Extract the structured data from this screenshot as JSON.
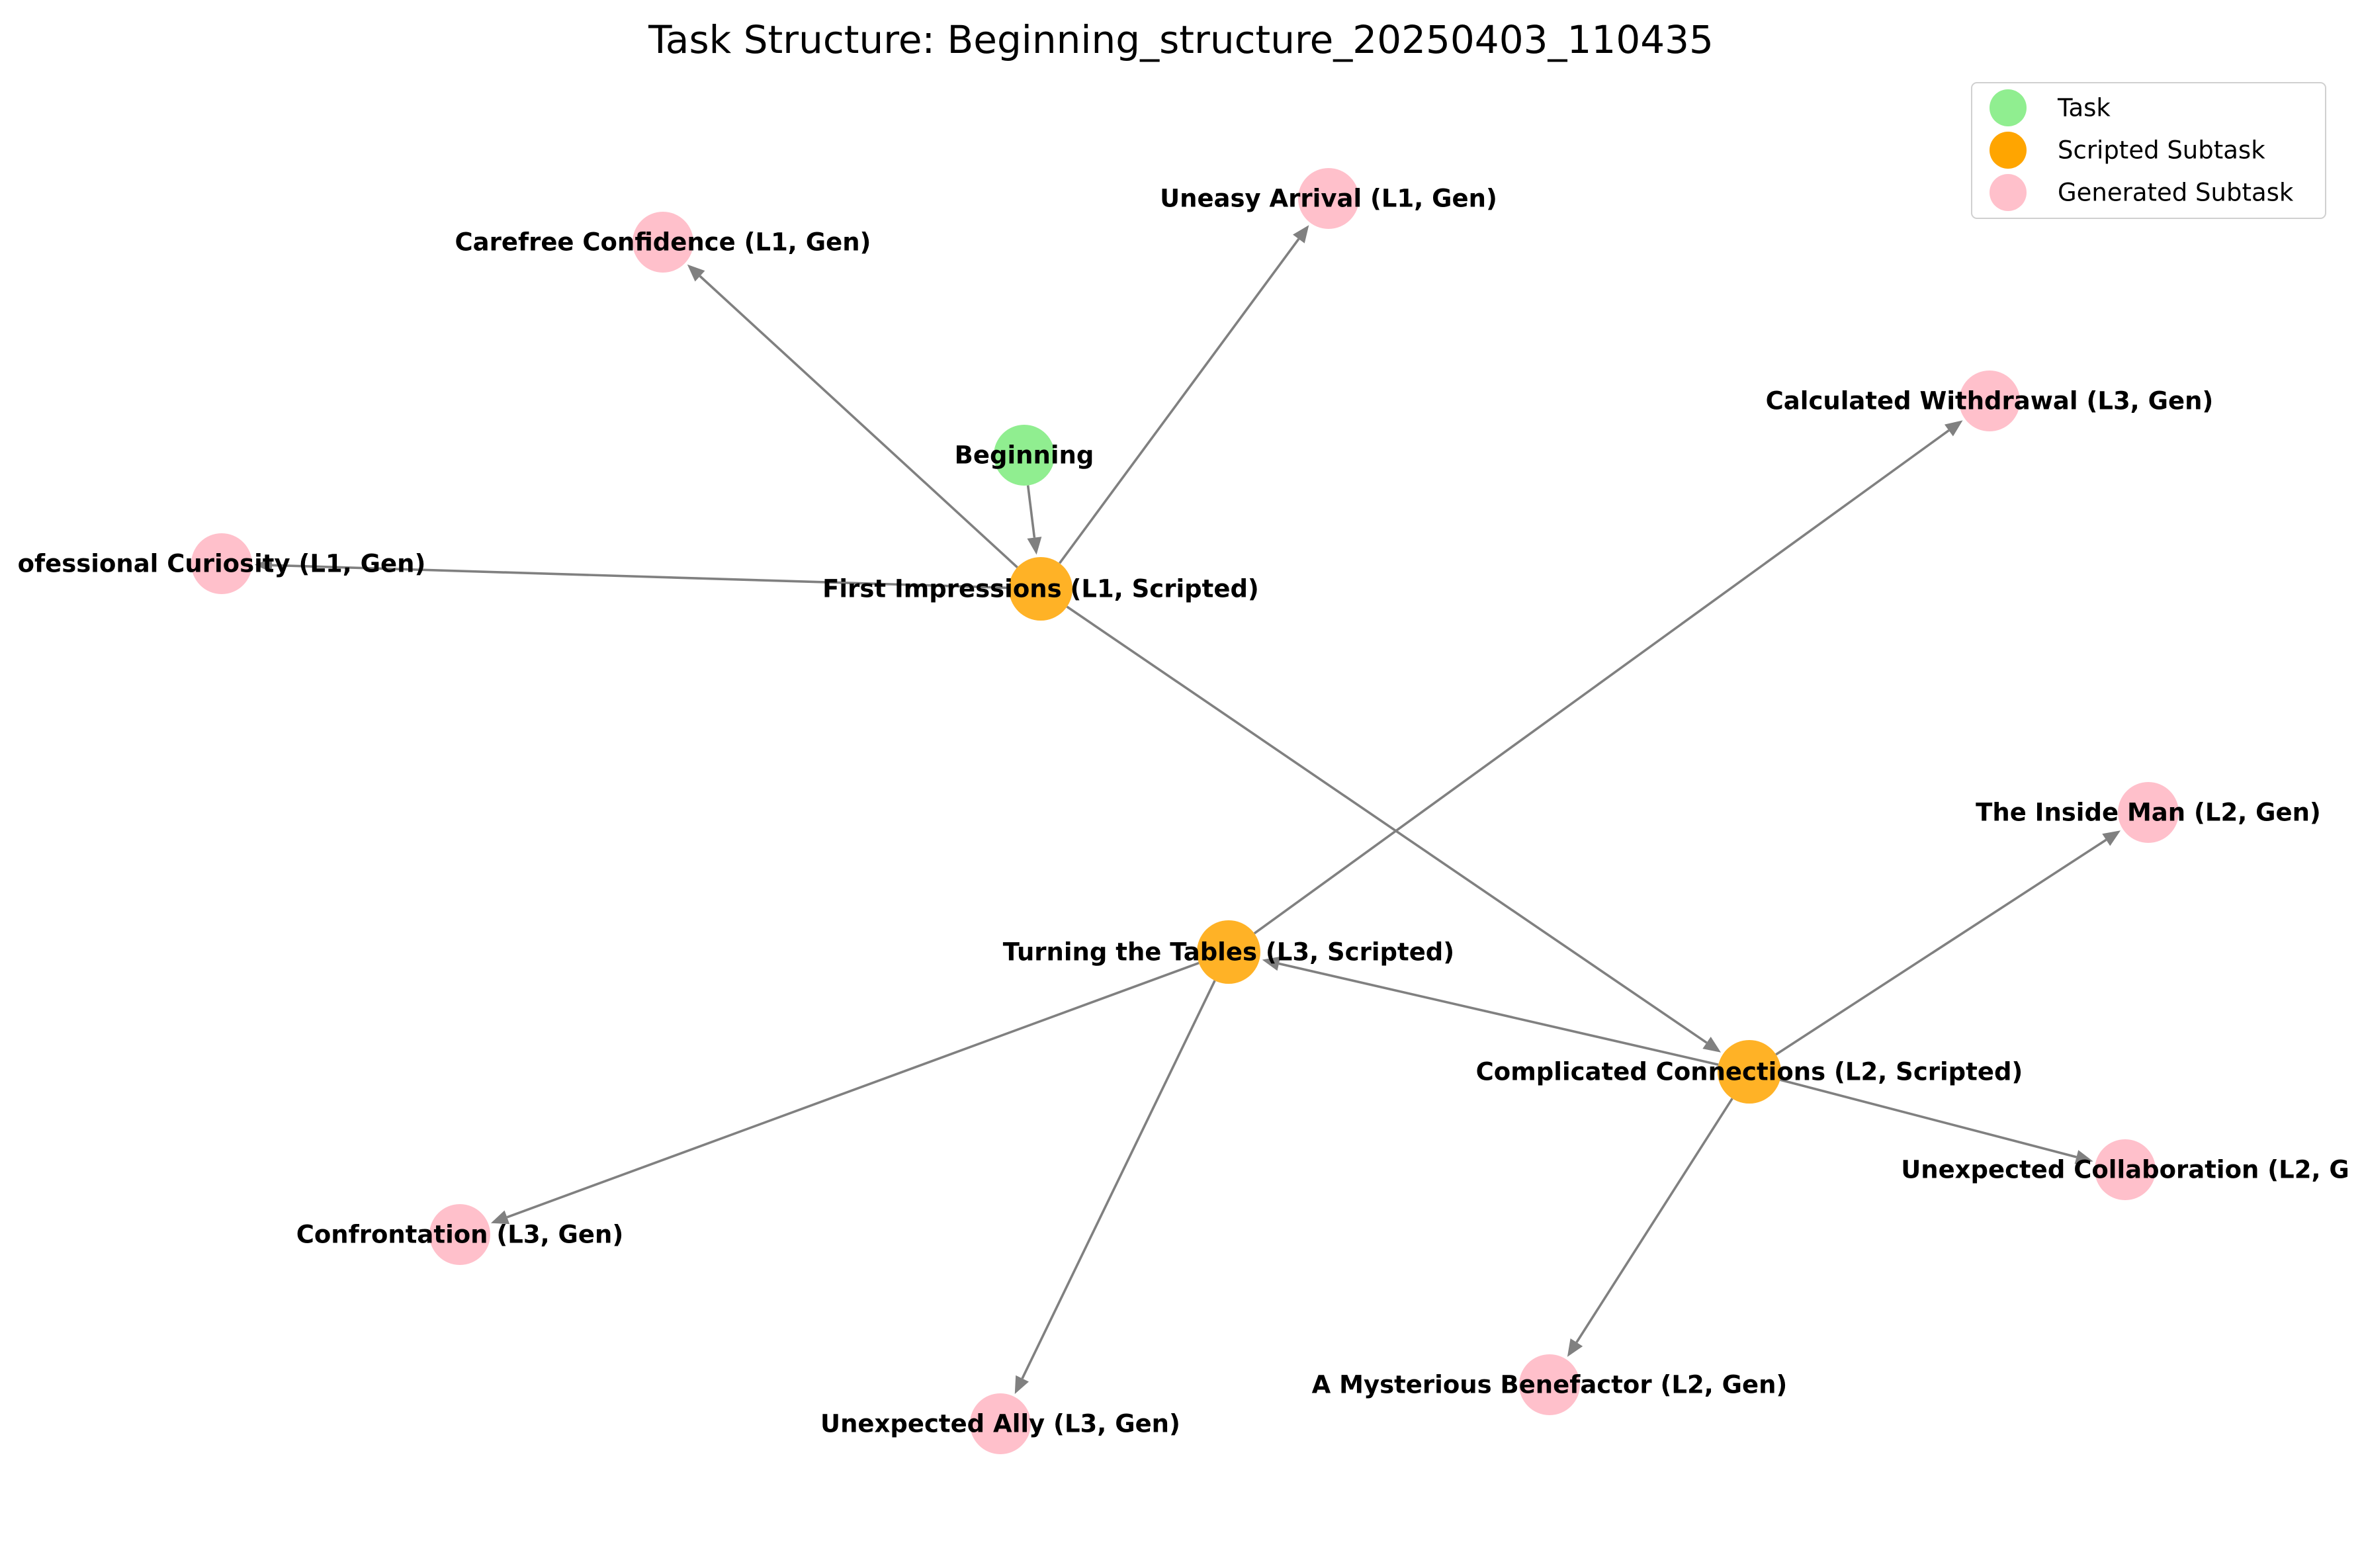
{
  "title": "Task Structure: Beginning_structure_20250403_110435",
  "colors": {
    "task": "#90EE90",
    "scripted": "#FFA500",
    "generated": "#FFC0CB",
    "edge": "#808080"
  },
  "legend": [
    {
      "type": "task",
      "label": "Task"
    },
    {
      "type": "scripted",
      "label": "Scripted Subtask"
    },
    {
      "type": "generated",
      "label": "Generated Subtask"
    }
  ],
  "nodes": [
    {
      "id": "beginning",
      "label": "Beginning",
      "type": "task"
    },
    {
      "id": "first_impressions",
      "label": "First Impressions (L1, Scripted)",
      "type": "scripted"
    },
    {
      "id": "carefree_confidence",
      "label": "Carefree Confidence (L1, Gen)",
      "type": "generated"
    },
    {
      "id": "uneasy_arrival",
      "label": "Uneasy Arrival (L1, Gen)",
      "type": "generated"
    },
    {
      "id": "professional_curiosity",
      "label": "ofessional Curiosity (L1, Gen)",
      "type": "generated"
    },
    {
      "id": "calculated_withdrawal",
      "label": "Calculated Withdrawal (L3, Gen)",
      "type": "generated"
    },
    {
      "id": "inside_man",
      "label": "The Inside Man (L2, Gen)",
      "type": "generated"
    },
    {
      "id": "turning_tables",
      "label": "Turning the Tables (L3, Scripted)",
      "type": "scripted"
    },
    {
      "id": "complicated_connections",
      "label": "Complicated Connections (L2, Scripted)",
      "type": "scripted"
    },
    {
      "id": "unexpected_collaboration",
      "label": "Unexpected Collaboration (L2, G",
      "type": "generated"
    },
    {
      "id": "confrontation",
      "label": "Confrontation (L3, Gen)",
      "type": "generated"
    },
    {
      "id": "mysterious_benefactor",
      "label": "A Mysterious Benefactor (L2, Gen)",
      "type": "generated"
    },
    {
      "id": "unexpected_ally",
      "label": "Unexpected Ally (L3, Gen)",
      "type": "generated"
    }
  ],
  "edges": [
    {
      "from": "beginning",
      "to": "first_impressions"
    },
    {
      "from": "first_impressions",
      "to": "carefree_confidence"
    },
    {
      "from": "first_impressions",
      "to": "uneasy_arrival"
    },
    {
      "from": "first_impressions",
      "to": "professional_curiosity"
    },
    {
      "from": "first_impressions",
      "to": "complicated_connections"
    },
    {
      "from": "complicated_connections",
      "to": "inside_man"
    },
    {
      "from": "complicated_connections",
      "to": "turning_tables"
    },
    {
      "from": "complicated_connections",
      "to": "unexpected_collaboration"
    },
    {
      "from": "complicated_connections",
      "to": "mysterious_benefactor"
    },
    {
      "from": "turning_tables",
      "to": "calculated_withdrawal"
    },
    {
      "from": "turning_tables",
      "to": "confrontation"
    },
    {
      "from": "turning_tables",
      "to": "unexpected_ally"
    }
  ]
}
